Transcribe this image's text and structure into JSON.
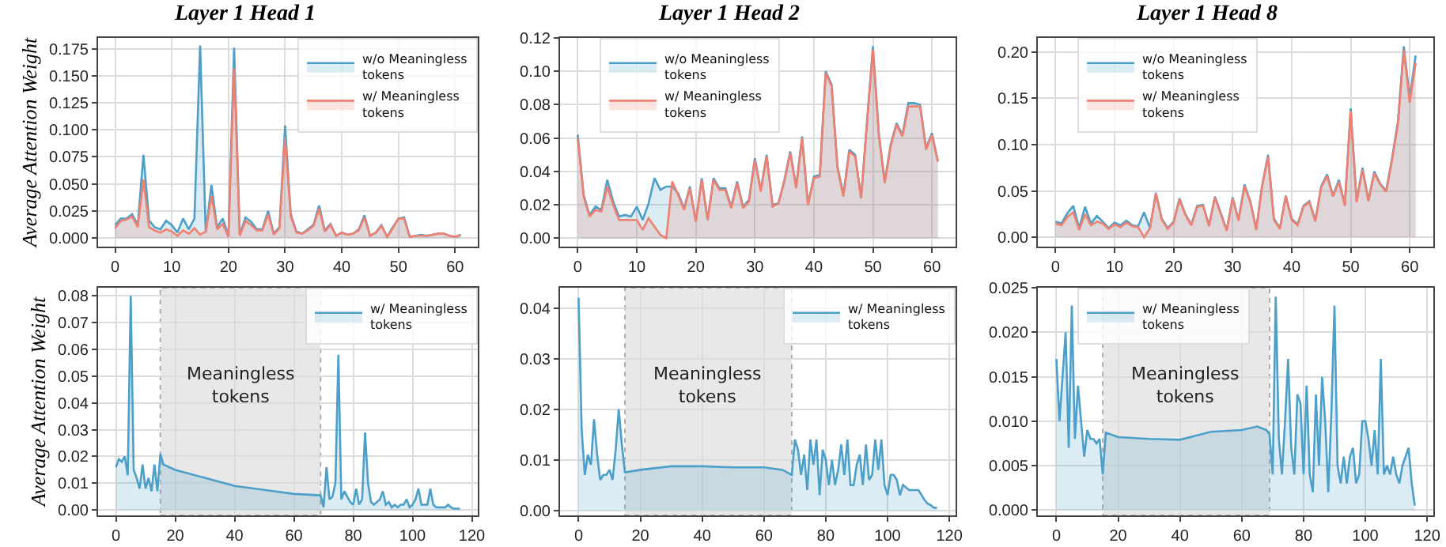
{
  "chart_data": [
    {
      "type": "area",
      "title": "Layer 1 Head 1",
      "ylabel": "Average Attention Weight",
      "xlim": [
        -3,
        64
      ],
      "xticks": [
        0,
        10,
        20,
        30,
        40,
        50,
        60
      ],
      "ylim": [
        -0.008,
        0.185
      ],
      "yticks": [
        {
          "value": 0,
          "label": "0.000"
        },
        {
          "value": 0.025,
          "label": "0.025"
        },
        {
          "value": 0.05,
          "label": "0.050"
        },
        {
          "value": 0.075,
          "label": "0.075"
        },
        {
          "value": 0.1,
          "label": "0.100"
        },
        {
          "value": 0.125,
          "label": "0.125"
        },
        {
          "value": 0.15,
          "label": "0.150"
        },
        {
          "value": 0.175,
          "label": "0.175"
        }
      ],
      "grid": true,
      "legend": "top right",
      "x": [
        0,
        1,
        2,
        3,
        4,
        5,
        6,
        7,
        8,
        9,
        10,
        11,
        12,
        13,
        14,
        15,
        16,
        17,
        18,
        19,
        20,
        21,
        22,
        23,
        24,
        25,
        26,
        27,
        28,
        29,
        30,
        31,
        32,
        33,
        34,
        35,
        36,
        37,
        38,
        39,
        40,
        41,
        42,
        43,
        44,
        45,
        46,
        47,
        48,
        49,
        50,
        51,
        52,
        53,
        54,
        55,
        56,
        57,
        58,
        59,
        60,
        61
      ],
      "series": [
        {
          "name": "w/o Meaningless tokens",
          "color": "#4c9fc9",
          "values": [
            0.012,
            0.018,
            0.018,
            0.022,
            0.012,
            0.077,
            0.016,
            0.01,
            0.008,
            0.016,
            0.012,
            0.005,
            0.018,
            0.008,
            0.018,
            0.178,
            0.005,
            0.049,
            0.01,
            0.018,
            0.002,
            0.176,
            0.003,
            0.019,
            0.015,
            0.008,
            0.008,
            0.025,
            0.004,
            0.01,
            0.104,
            0.022,
            0.006,
            0.004,
            0.008,
            0.012,
            0.03,
            0.007,
            0.013,
            0.002,
            0.005,
            0.003,
            0.004,
            0.008,
            0.021,
            0.002,
            0.005,
            0.012,
            0.001,
            0.01,
            0.018,
            0.019,
            0.001,
            0.002,
            0.003,
            0.002,
            0.003,
            0.004,
            0.004,
            0.002,
            0.001,
            0.003
          ]
        },
        {
          "name": "w/ Meaningless tokens",
          "color": "#f08070",
          "values": [
            0.009,
            0.016,
            0.017,
            0.02,
            0.01,
            0.054,
            0.01,
            0.007,
            0.005,
            0.008,
            0.006,
            0.002,
            0.007,
            0.004,
            0.009,
            0.003,
            0.006,
            0.039,
            0.008,
            0.013,
            0.001,
            0.157,
            0.002,
            0.016,
            0.012,
            0.007,
            0.007,
            0.022,
            0.003,
            0.009,
            0.093,
            0.02,
            0.005,
            0.004,
            0.007,
            0.011,
            0.027,
            0.006,
            0.012,
            0.002,
            0.005,
            0.003,
            0.004,
            0.007,
            0.019,
            0.002,
            0.005,
            0.011,
            0.001,
            0.009,
            0.018,
            0.018,
            0.001,
            0.002,
            0.002,
            0.002,
            0.003,
            0.004,
            0.004,
            0.002,
            0.001,
            0.003
          ]
        }
      ]
    },
    {
      "type": "area",
      "title": "Layer 1 Head 2",
      "xlim": [
        -3,
        64
      ],
      "xticks": [
        0,
        10,
        20,
        30,
        40,
        50,
        60
      ],
      "ylim": [
        -0.005,
        0.12
      ],
      "yticks": [
        {
          "value": 0,
          "label": "0.00"
        },
        {
          "value": 0.02,
          "label": "0.02"
        },
        {
          "value": 0.04,
          "label": "0.04"
        },
        {
          "value": 0.06,
          "label": "0.06"
        },
        {
          "value": 0.08,
          "label": "0.08"
        },
        {
          "value": 0.1,
          "label": "0.10"
        },
        {
          "value": 0.12,
          "label": "0.12"
        }
      ],
      "grid": true,
      "legend": "top left",
      "x": [
        0,
        1,
        2,
        3,
        4,
        5,
        6,
        7,
        8,
        9,
        10,
        11,
        12,
        13,
        14,
        15,
        16,
        17,
        18,
        19,
        20,
        21,
        22,
        23,
        24,
        25,
        26,
        27,
        28,
        29,
        30,
        31,
        32,
        33,
        34,
        35,
        36,
        37,
        38,
        39,
        40,
        41,
        42,
        43,
        44,
        45,
        46,
        47,
        48,
        49,
        50,
        51,
        52,
        53,
        54,
        55,
        56,
        57,
        58,
        59,
        60,
        61
      ],
      "series": [
        {
          "name": "w/o Meaningless tokens",
          "color": "#4c9fc9",
          "values": [
            0.062,
            0.026,
            0.014,
            0.019,
            0.017,
            0.035,
            0.022,
            0.013,
            0.014,
            0.013,
            0.019,
            0.011,
            0.021,
            0.036,
            0.029,
            0.031,
            0.031,
            0.027,
            0.018,
            0.031,
            0.01,
            0.036,
            0.011,
            0.036,
            0.03,
            0.03,
            0.019,
            0.034,
            0.019,
            0.023,
            0.048,
            0.029,
            0.05,
            0.02,
            0.021,
            0.035,
            0.052,
            0.031,
            0.061,
            0.02,
            0.037,
            0.038,
            0.1,
            0.092,
            0.043,
            0.026,
            0.053,
            0.05,
            0.024,
            0.07,
            0.115,
            0.063,
            0.034,
            0.056,
            0.069,
            0.062,
            0.081,
            0.081,
            0.08,
            0.054,
            0.063,
            0.046
          ]
        },
        {
          "name": "w/ Meaningless tokens",
          "color": "#f08070",
          "values": [
            0.06,
            0.025,
            0.013,
            0.017,
            0.016,
            0.031,
            0.02,
            0.011,
            0.011,
            0.011,
            0.011,
            0.005,
            0.012,
            0.007,
            0.002,
            0.0,
            0.034,
            0.026,
            0.017,
            0.03,
            0.01,
            0.035,
            0.011,
            0.035,
            0.029,
            0.029,
            0.018,
            0.033,
            0.018,
            0.022,
            0.047,
            0.028,
            0.049,
            0.019,
            0.021,
            0.034,
            0.051,
            0.03,
            0.06,
            0.02,
            0.036,
            0.037,
            0.099,
            0.091,
            0.042,
            0.025,
            0.052,
            0.049,
            0.024,
            0.069,
            0.113,
            0.062,
            0.033,
            0.055,
            0.068,
            0.061,
            0.079,
            0.079,
            0.079,
            0.053,
            0.062,
            0.046
          ]
        }
      ]
    },
    {
      "type": "area",
      "title": "Layer 1 Head 8",
      "xlim": [
        -3,
        64
      ],
      "xticks": [
        0,
        10,
        20,
        30,
        40,
        50,
        60
      ],
      "ylim": [
        -0.01,
        0.215
      ],
      "yticks": [
        {
          "value": 0,
          "label": "0.00"
        },
        {
          "value": 0.05,
          "label": "0.05"
        },
        {
          "value": 0.1,
          "label": "0.10"
        },
        {
          "value": 0.15,
          "label": "0.15"
        },
        {
          "value": 0.2,
          "label": "0.20"
        }
      ],
      "grid": true,
      "legend": "top left",
      "x": [
        0,
        1,
        2,
        3,
        4,
        5,
        6,
        7,
        8,
        9,
        10,
        11,
        12,
        13,
        14,
        15,
        16,
        17,
        18,
        19,
        20,
        21,
        22,
        23,
        24,
        25,
        26,
        27,
        28,
        29,
        30,
        31,
        32,
        33,
        34,
        35,
        36,
        37,
        38,
        39,
        40,
        41,
        42,
        43,
        44,
        45,
        46,
        47,
        48,
        49,
        50,
        51,
        52,
        53,
        54,
        55,
        56,
        57,
        58,
        59,
        60,
        61
      ],
      "series": [
        {
          "name": "w/o Meaningless tokens",
          "color": "#4c9fc9",
          "values": [
            0.017,
            0.015,
            0.026,
            0.034,
            0.01,
            0.033,
            0.015,
            0.023,
            0.017,
            0.01,
            0.016,
            0.013,
            0.018,
            0.013,
            0.012,
            0.027,
            0.01,
            0.048,
            0.02,
            0.01,
            0.017,
            0.042,
            0.025,
            0.014,
            0.034,
            0.035,
            0.013,
            0.044,
            0.026,
            0.008,
            0.043,
            0.019,
            0.057,
            0.039,
            0.009,
            0.056,
            0.089,
            0.02,
            0.01,
            0.045,
            0.02,
            0.014,
            0.034,
            0.039,
            0.018,
            0.055,
            0.068,
            0.045,
            0.062,
            0.035,
            0.139,
            0.039,
            0.075,
            0.04,
            0.071,
            0.058,
            0.05,
            0.085,
            0.125,
            0.206,
            0.15,
            0.196
          ]
        },
        {
          "name": "w/ Meaningless tokens",
          "color": "#f08070",
          "values": [
            0.015,
            0.013,
            0.022,
            0.027,
            0.008,
            0.025,
            0.013,
            0.017,
            0.015,
            0.009,
            0.014,
            0.011,
            0.016,
            0.012,
            0.011,
            0.0,
            0.01,
            0.047,
            0.019,
            0.009,
            0.016,
            0.041,
            0.024,
            0.013,
            0.033,
            0.034,
            0.012,
            0.043,
            0.025,
            0.007,
            0.042,
            0.018,
            0.055,
            0.038,
            0.008,
            0.055,
            0.087,
            0.019,
            0.009,
            0.044,
            0.019,
            0.013,
            0.033,
            0.038,
            0.017,
            0.054,
            0.066,
            0.044,
            0.06,
            0.034,
            0.136,
            0.038,
            0.073,
            0.039,
            0.069,
            0.057,
            0.049,
            0.083,
            0.122,
            0.202,
            0.145,
            0.188
          ]
        }
      ]
    },
    {
      "type": "area",
      "ylabel": "Average Attention Weight",
      "xlim": [
        -6,
        122
      ],
      "xticks": [
        0,
        20,
        40,
        60,
        80,
        100,
        120
      ],
      "ylim": [
        -0.002,
        0.083
      ],
      "yticks": [
        {
          "value": 0,
          "label": "0.00"
        },
        {
          "value": 0.01,
          "label": "0.01"
        },
        {
          "value": 0.02,
          "label": "0.02"
        },
        {
          "value": 0.03,
          "label": "0.03"
        },
        {
          "value": 0.04,
          "label": "0.04"
        },
        {
          "value": 0.05,
          "label": "0.05"
        },
        {
          "value": 0.06,
          "label": "0.06"
        },
        {
          "value": 0.07,
          "label": "0.07"
        },
        {
          "value": 0.08,
          "label": "0.08"
        }
      ],
      "grid": true,
      "legend": "top right",
      "bands": [
        {
          "axis": "x",
          "from": 15,
          "to": 69,
          "label": "Meaningless tokens",
          "color": "#e3e3e3"
        }
      ],
      "series": [
        {
          "name": "w/ Meaningless tokens",
          "color": "#4c9fc9",
          "x": [
            0,
            1,
            2,
            3,
            4,
            5,
            6,
            7,
            8,
            9,
            10,
            11,
            12,
            13,
            14,
            15,
            16,
            20,
            30,
            40,
            50,
            60,
            69,
            70,
            71,
            72,
            73,
            74,
            75,
            76,
            77,
            78,
            79,
            80,
            81,
            82,
            83,
            84,
            85,
            86,
            87,
            88,
            89,
            90,
            91,
            92,
            93,
            94,
            95,
            96,
            97,
            98,
            99,
            100,
            101,
            102,
            103,
            104,
            105,
            106,
            107,
            108,
            109,
            110,
            111,
            112,
            113,
            114,
            115,
            116
          ],
          "values": [
            0.016,
            0.019,
            0.018,
            0.02,
            0.013,
            0.08,
            0.015,
            0.012,
            0.008,
            0.017,
            0.008,
            0.012,
            0.007,
            0.017,
            0.007,
            0.021,
            0.017,
            0.015,
            0.012,
            0.009,
            0.0075,
            0.006,
            0.0055,
            0.001,
            0.016,
            0.004,
            0.005,
            0.01,
            0.058,
            0.004,
            0.007,
            0.005,
            0.003,
            0.002,
            0.008,
            0.002,
            0.004,
            0.029,
            0.01,
            0.003,
            0.002,
            0.003,
            0.004,
            0.007,
            0.002,
            0.003,
            0.001,
            0.002,
            0.001,
            0.002,
            0.002,
            0.004,
            0.001,
            0.002,
            0.004,
            0.008,
            0.002,
            0.002,
            0.002,
            0.008,
            0.002,
            0.001,
            0.001,
            0.001,
            0.001,
            0.002,
            0.001,
            0.0005,
            0.0005,
            0.0005
          ]
        }
      ]
    },
    {
      "type": "area",
      "xlim": [
        -6,
        122
      ],
      "xticks": [
        0,
        20,
        40,
        60,
        80,
        100,
        120
      ],
      "ylim": [
        -0.001,
        0.044
      ],
      "yticks": [
        {
          "value": 0,
          "label": "0.00"
        },
        {
          "value": 0.01,
          "label": "0.01"
        },
        {
          "value": 0.02,
          "label": "0.02"
        },
        {
          "value": 0.03,
          "label": "0.03"
        },
        {
          "value": 0.04,
          "label": "0.04"
        }
      ],
      "grid": true,
      "legend": "top right",
      "bands": [
        {
          "axis": "x",
          "from": 15,
          "to": 69,
          "label": "Meaningless tokens",
          "color": "#e3e3e3"
        }
      ],
      "series": [
        {
          "name": "w/ Meaningless tokens",
          "color": "#4c9fc9",
          "x": [
            0,
            1,
            2,
            3,
            4,
            5,
            6,
            7,
            8,
            9,
            10,
            11,
            12,
            13,
            14,
            15,
            20,
            30,
            40,
            50,
            60,
            66,
            69,
            70,
            71,
            72,
            73,
            74,
            75,
            76,
            77,
            78,
            79,
            80,
            81,
            82,
            83,
            84,
            85,
            86,
            87,
            88,
            89,
            90,
            91,
            92,
            93,
            94,
            95,
            96,
            97,
            98,
            99,
            100,
            101,
            102,
            103,
            104,
            105,
            106,
            107,
            108,
            109,
            110,
            111,
            112,
            113,
            114,
            115,
            116
          ],
          "values": [
            0.042,
            0.016,
            0.007,
            0.011,
            0.009,
            0.018,
            0.011,
            0.006,
            0.007,
            0.007,
            0.008,
            0.006,
            0.012,
            0.02,
            0.013,
            0.0075,
            0.008,
            0.0087,
            0.0087,
            0.0085,
            0.0085,
            0.008,
            0.007,
            0.014,
            0.012,
            0.007,
            0.011,
            0.004,
            0.014,
            0.009,
            0.014,
            0.003,
            0.012,
            0.01,
            0.005,
            0.01,
            0.005,
            0.008,
            0.013,
            0.007,
            0.014,
            0.005,
            0.005,
            0.009,
            0.011,
            0.005,
            0.013,
            0.006,
            0.007,
            0.014,
            0.008,
            0.014,
            0.005,
            0.003,
            0.007,
            0.007,
            0.006,
            0.003,
            0.005,
            0.0045,
            0.004,
            0.004,
            0.004,
            0.004,
            0.003,
            0.002,
            0.0013,
            0.001,
            0.0005,
            0.0005
          ]
        }
      ]
    },
    {
      "type": "area",
      "xlim": [
        -6,
        122
      ],
      "xticks": [
        0,
        20,
        40,
        60,
        80,
        100,
        120
      ],
      "ylim": [
        -0.0006,
        0.025
      ],
      "yticks": [
        {
          "value": 0,
          "label": "0.000"
        },
        {
          "value": 0.005,
          "label": "0.005"
        },
        {
          "value": 0.01,
          "label": "0.010"
        },
        {
          "value": 0.015,
          "label": "0.015"
        },
        {
          "value": 0.02,
          "label": "0.020"
        },
        {
          "value": 0.025,
          "label": "0.025"
        }
      ],
      "grid": true,
      "legend": "top left",
      "bands": [
        {
          "axis": "x",
          "from": 15,
          "to": 69,
          "label": "Meaningless tokens",
          "color": "#e3e3e3"
        }
      ],
      "series": [
        {
          "name": "w/ Meaningless tokens",
          "color": "#4c9fc9",
          "x": [
            0,
            1,
            2,
            3,
            4,
            5,
            6,
            7,
            8,
            9,
            10,
            11,
            12,
            13,
            14,
            15,
            16,
            20,
            30,
            40,
            50,
            60,
            65,
            68,
            69,
            70,
            71,
            72,
            73,
            74,
            75,
            76,
            77,
            78,
            79,
            80,
            81,
            82,
            83,
            84,
            85,
            86,
            87,
            88,
            89,
            90,
            91,
            92,
            93,
            94,
            95,
            96,
            97,
            98,
            99,
            100,
            101,
            102,
            103,
            104,
            105,
            106,
            107,
            108,
            109,
            110,
            111,
            112,
            113,
            114,
            115,
            116
          ],
          "values": [
            0.017,
            0.01,
            0.015,
            0.02,
            0.007,
            0.023,
            0.008,
            0.014,
            0.01,
            0.006,
            0.009,
            0.008,
            0.008,
            0.0075,
            0.008,
            0.004,
            0.0087,
            0.0082,
            0.008,
            0.0079,
            0.0088,
            0.009,
            0.0094,
            0.009,
            0.0085,
            0.004,
            0.024,
            0.008,
            0.004,
            0.01,
            0.017,
            0.007,
            0.004,
            0.013,
            0.012,
            0.004,
            0.014,
            0.004,
            0.002,
            0.013,
            0.005,
            0.015,
            0.01,
            0.002,
            0.011,
            0.023,
            0.005,
            0.003,
            0.006,
            0.003,
            0.006,
            0.007,
            0.003,
            0.004,
            0.01,
            0.01,
            0.008,
            0.005,
            0.009,
            0.004,
            0.017,
            0.004,
            0.005,
            0.004,
            0.006,
            0.004,
            0.003,
            0.005,
            0.006,
            0.007,
            0.003,
            0.0005
          ]
        }
      ]
    }
  ]
}
